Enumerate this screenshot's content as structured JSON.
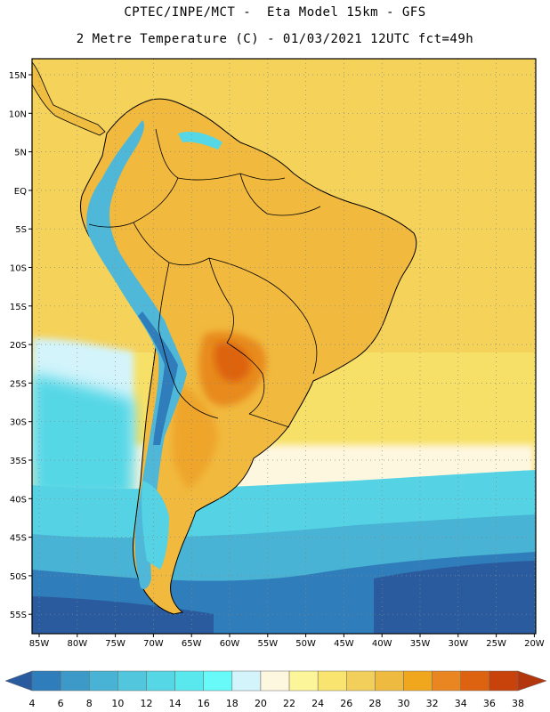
{
  "header": {
    "line1": "CPTEC/INPE/MCT -  Eta Model 15km - GFS",
    "line2": "2 Metre Temperature (C) - 01/03/2021 12UTC fct=49h"
  },
  "map": {
    "region": "South America",
    "variable": "2 Metre Temperature",
    "lon_range": [
      -86,
      -20
    ],
    "lat_range": [
      -58,
      17
    ],
    "grid": true,
    "lon_ticks": [
      "85W",
      "80W",
      "75W",
      "70W",
      "65W",
      "60W",
      "55W",
      "50W",
      "45W",
      "40W",
      "35W",
      "30W",
      "25W",
      "20W"
    ],
    "lat_ticks": [
      "15N",
      "10N",
      "5N",
      "EQ",
      "5S",
      "10S",
      "15S",
      "20S",
      "25S",
      "30S",
      "35S",
      "40S",
      "45S",
      "50S",
      "55S"
    ],
    "colors": {
      "ocean_warm": "#f8e46e",
      "land_warm": "#f1b93e",
      "hot": "#e88a1a",
      "cool_ocean": "#55d2e4",
      "cold_ocean": "#2a5a9e"
    }
  },
  "colorbar": {
    "labels": [
      "4",
      "6",
      "8",
      "10",
      "12",
      "14",
      "16",
      "18",
      "20",
      "22",
      "24",
      "26",
      "28",
      "30",
      "32",
      "34",
      "36",
      "38"
    ],
    "colors": [
      "#2b5b9f",
      "#2f7dba",
      "#3d9ac8",
      "#48b3d4",
      "#52c6dc",
      "#55d7e6",
      "#5ae8ef",
      "#68faf8",
      "#d3f4fb",
      "#fef7e0",
      "#fdf59a",
      "#f8e46e",
      "#f2cf5a",
      "#eebb40",
      "#f0a71d",
      "#e98622",
      "#dd6311",
      "#c8420c",
      "#b3360d"
    ]
  }
}
